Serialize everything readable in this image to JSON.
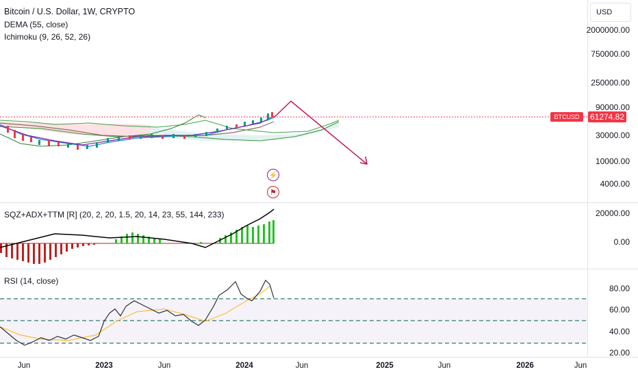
{
  "header": {
    "symbol_title": "Bitcoin / U.S. Dollar, 1W, CRYPTO",
    "indicator_dema": "DEMA (55, close)",
    "indicator_ichimoku": "Ichimoku (9, 26, 52, 26)"
  },
  "currency_button": {
    "label": "USD"
  },
  "price_axis": {
    "labels": [
      "2000000.00",
      "750000.00",
      "250000.00",
      "90000.00",
      "30000.00",
      "10000.00",
      "4000.00"
    ],
    "current_price": "61274.82",
    "ticker": "BTCUSD"
  },
  "sqz_pane": {
    "legend": "SQZ+ADX+TTM [R] (20, 2, 20, 1.5, 20, 14, 23, 55, 144, 233)",
    "axis_labels": [
      "20000.00",
      "0.00"
    ]
  },
  "rsi_pane": {
    "legend": "RSI (14, close)",
    "axis_labels": [
      "80.00",
      "60.00",
      "40.00",
      "20.00"
    ]
  },
  "time_axis": {
    "labels": [
      "Jun",
      "2023",
      "Jun",
      "2024",
      "Jun",
      "2025",
      "Jun",
      "2026",
      "Jun"
    ]
  },
  "events": {
    "lightning": "lightning-icon",
    "flag": "us-flag-icon"
  },
  "colors": {
    "up": "#089981",
    "down": "#f23645",
    "arrow": "#c2185b",
    "rsi_line": "#2a2e39",
    "rsi_band": "#7e57c2",
    "rsi_ma": "#fbc02d",
    "hist_green": "#22c322",
    "hist_red": "#c21f1f"
  }
}
